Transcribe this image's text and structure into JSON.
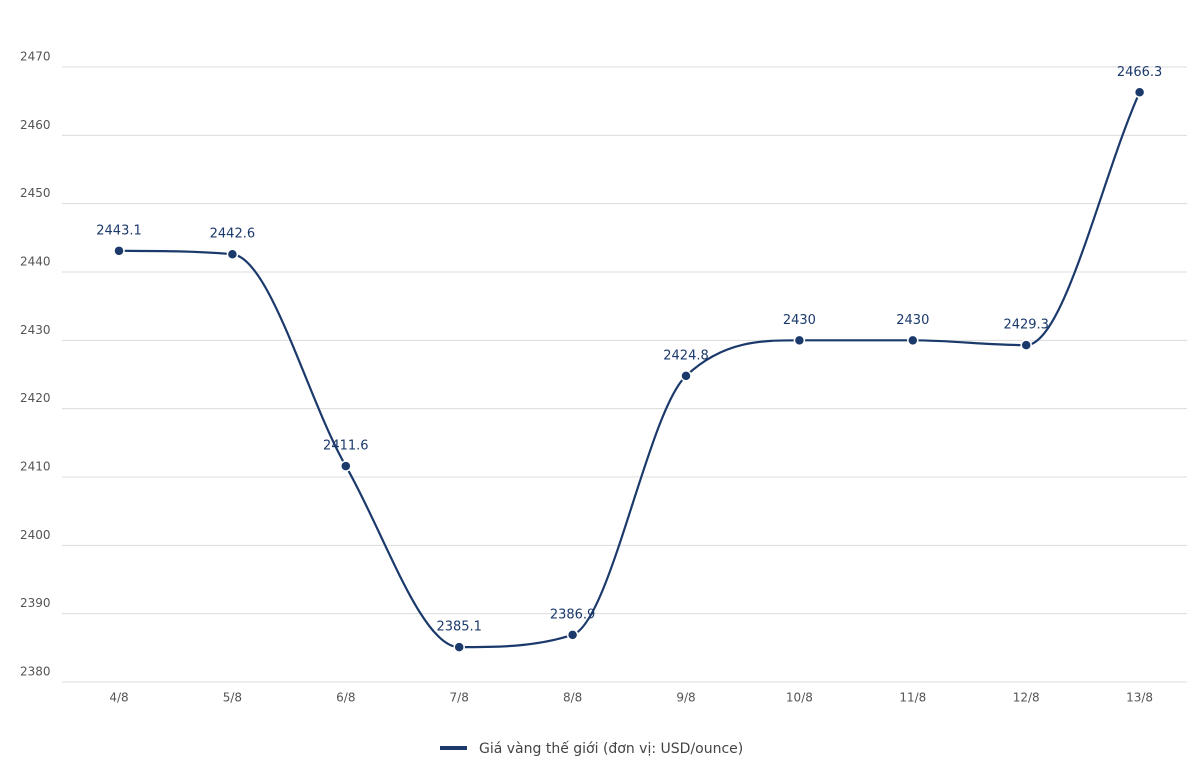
{
  "chart_data": {
    "type": "line",
    "categories": [
      "4/8",
      "5/8",
      "6/8",
      "7/8",
      "8/8",
      "9/8",
      "10/8",
      "11/8",
      "12/8",
      "13/8"
    ],
    "series": [
      {
        "name": "Giá vàng thế giới (đơn vị: USD/ounce)",
        "color": "#1b3a6b",
        "values": [
          2443.1,
          2442.6,
          2411.6,
          2385.1,
          2386.9,
          2424.8,
          2430,
          2430,
          2429.3,
          2466.3
        ]
      }
    ],
    "ylim": [
      2380,
      2470
    ],
    "yticks": [
      2380,
      2390,
      2400,
      2410,
      2420,
      2430,
      2440,
      2450,
      2460,
      2470
    ],
    "grid": true,
    "legend": "bottom"
  }
}
